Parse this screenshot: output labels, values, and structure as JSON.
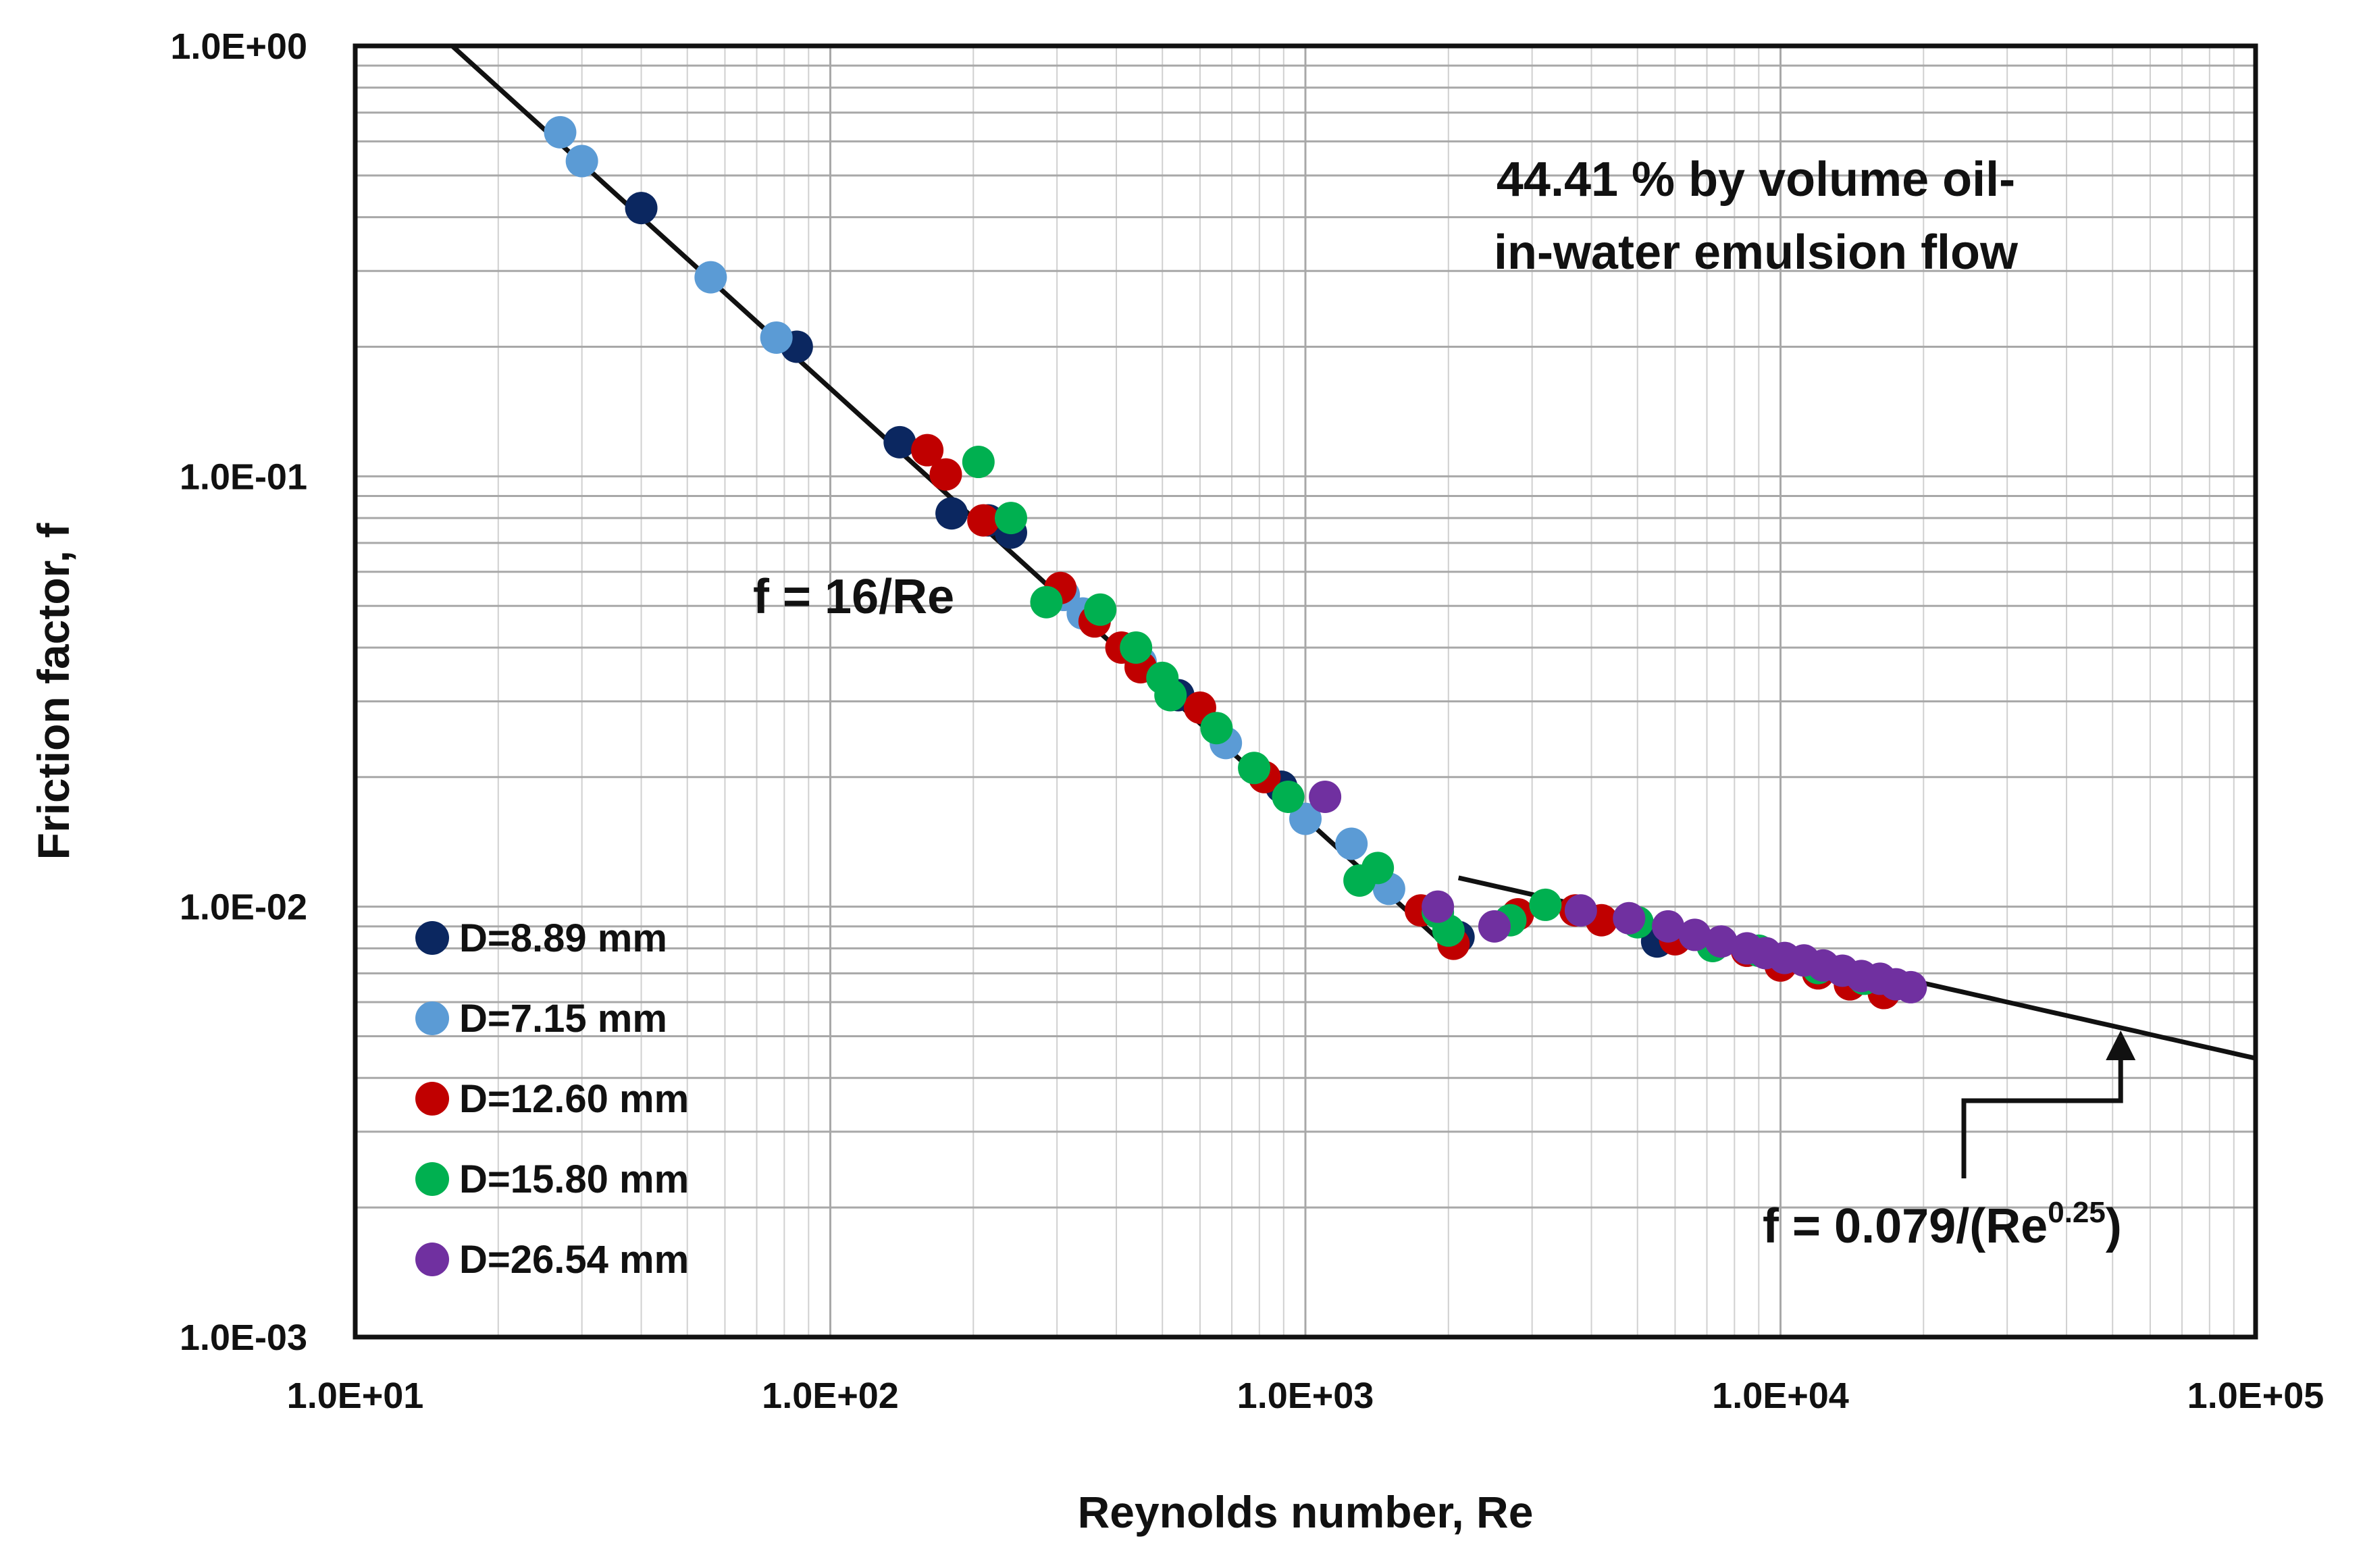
{
  "chart_data": {
    "type": "scatter",
    "title": "44.41 % by volume oil-in-water emulsion flow",
    "title_lines": [
      "44.41 % by volume oil-",
      "in-water emulsion flow"
    ],
    "xlabel": "Reynolds number, Re",
    "ylabel": "Friction factor, f",
    "xscale": "log",
    "yscale": "log",
    "xlim": [
      10,
      100000
    ],
    "ylim": [
      0.001,
      1
    ],
    "grid": true,
    "x_ticks": [
      {
        "value": 10,
        "label": "1.0E+01"
      },
      {
        "value": 100,
        "label": "1.0E+02"
      },
      {
        "value": 1000,
        "label": "1.0E+03"
      },
      {
        "value": 10000,
        "label": "1.0E+04"
      },
      {
        "value": 100000,
        "label": "1.0E+05"
      }
    ],
    "y_ticks": [
      {
        "value": 1,
        "label": "1.0E+00"
      },
      {
        "value": 0.1,
        "label": "1.0E-01"
      },
      {
        "value": 0.01,
        "label": "1.0E-02"
      },
      {
        "value": 0.001,
        "label": "1.0E-03"
      }
    ],
    "legend_position": "bottom-left",
    "series": [
      {
        "name": "D=8.89 mm",
        "color": "#0b2760",
        "points": [
          [
            40,
            0.42
          ],
          [
            85,
            0.2
          ],
          [
            140,
            0.12
          ],
          [
            180,
            0.082
          ],
          [
            215,
            0.079
          ],
          [
            240,
            0.074
          ],
          [
            540,
            0.031
          ],
          [
            890,
            0.019
          ],
          [
            2100,
            0.0085
          ],
          [
            5500,
            0.0083
          ]
        ]
      },
      {
        "name": "D=7.15 mm",
        "color": "#5b9bd5",
        "points": [
          [
            27,
            0.63
          ],
          [
            30,
            0.54
          ],
          [
            56,
            0.29
          ],
          [
            77,
            0.21
          ],
          [
            310,
            0.053
          ],
          [
            340,
            0.048
          ],
          [
            450,
            0.037
          ],
          [
            680,
            0.024
          ],
          [
            1000,
            0.016
          ],
          [
            1250,
            0.014
          ],
          [
            1500,
            0.011
          ]
        ]
      },
      {
        "name": "D=12.60 mm",
        "color": "#c00000",
        "points": [
          [
            160,
            0.115
          ],
          [
            175,
            0.101
          ],
          [
            210,
            0.079
          ],
          [
            305,
            0.055
          ],
          [
            360,
            0.046
          ],
          [
            410,
            0.04
          ],
          [
            450,
            0.036
          ],
          [
            600,
            0.029
          ],
          [
            820,
            0.02
          ],
          [
            1750,
            0.0098
          ],
          [
            2050,
            0.0082
          ],
          [
            2800,
            0.0096
          ],
          [
            3700,
            0.0098
          ],
          [
            4200,
            0.0093
          ],
          [
            6000,
            0.0084
          ],
          [
            8500,
            0.0079
          ],
          [
            10000,
            0.0073
          ],
          [
            12000,
            0.007
          ],
          [
            14000,
            0.0066
          ],
          [
            16500,
            0.0063
          ]
        ]
      },
      {
        "name": "D=15.80 mm",
        "color": "#00b050",
        "points": [
          [
            205,
            0.108
          ],
          [
            240,
            0.08
          ],
          [
            285,
            0.051
          ],
          [
            370,
            0.049
          ],
          [
            440,
            0.04
          ],
          [
            500,
            0.034
          ],
          [
            520,
            0.031
          ],
          [
            650,
            0.026
          ],
          [
            780,
            0.021
          ],
          [
            920,
            0.018
          ],
          [
            1300,
            0.0115
          ],
          [
            1420,
            0.0123
          ],
          [
            1900,
            0.0097
          ],
          [
            2000,
            0.0088
          ],
          [
            2700,
            0.0093
          ],
          [
            3200,
            0.0101
          ],
          [
            5000,
            0.0092
          ],
          [
            7200,
            0.0081
          ],
          [
            9000,
            0.0079
          ],
          [
            12000,
            0.0072
          ],
          [
            15000,
            0.0068
          ]
        ]
      },
      {
        "name": "D=26.54 mm",
        "color": "#7030a0",
        "points": [
          [
            1100,
            0.018
          ],
          [
            1900,
            0.01
          ],
          [
            2500,
            0.009
          ],
          [
            3800,
            0.0098
          ],
          [
            4800,
            0.0094
          ],
          [
            5800,
            0.009
          ],
          [
            6600,
            0.0086
          ],
          [
            7500,
            0.0083
          ],
          [
            8500,
            0.008
          ],
          [
            9300,
            0.0078
          ],
          [
            10200,
            0.0076
          ],
          [
            11200,
            0.0075
          ],
          [
            12300,
            0.0073
          ],
          [
            13500,
            0.0071
          ],
          [
            14800,
            0.0069
          ],
          [
            16200,
            0.0068
          ],
          [
            17500,
            0.0066
          ],
          [
            18800,
            0.0065
          ]
        ]
      }
    ],
    "lines": [
      {
        "name": "laminar",
        "label": "f = 16/Re",
        "equation": "16/Re",
        "x_range": [
          16,
          2100
        ]
      },
      {
        "name": "turbulent",
        "label_base": "f = 0.079/(Re",
        "label_exp": "0.25",
        "label_close": ")",
        "equation": "0.079/Re^0.25",
        "x_range": [
          2100,
          100000
        ],
        "arrow_to_x": 52000
      }
    ]
  }
}
